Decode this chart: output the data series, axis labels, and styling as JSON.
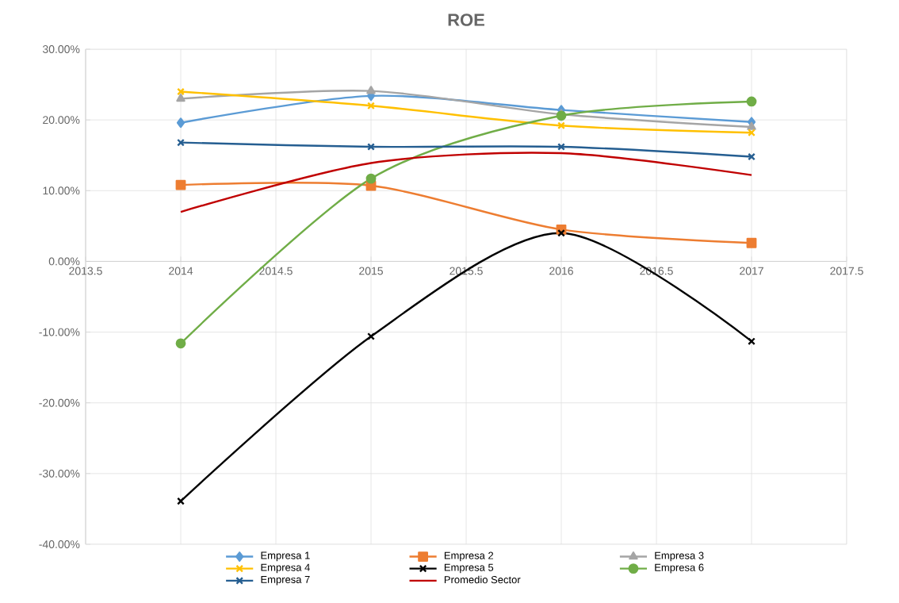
{
  "chart_data": {
    "type": "line",
    "title": "ROE",
    "x": [
      2014,
      2015,
      2016,
      2017
    ],
    "xlim": [
      2013.5,
      2017.5
    ],
    "xticks": [
      2013.5,
      2014,
      2014.5,
      2015,
      2015.5,
      2016,
      2016.5,
      2017,
      2017.5
    ],
    "ylim": [
      -40,
      30
    ],
    "yticks": [
      {
        "value": -40,
        "label": "-40.00%"
      },
      {
        "value": -30,
        "label": "-30.00%"
      },
      {
        "value": -20,
        "label": "-20.00%"
      },
      {
        "value": -10,
        "label": "-10.00%"
      },
      {
        "value": 0,
        "label": "0.00%"
      },
      {
        "value": 10,
        "label": "10.00%"
      },
      {
        "value": 20,
        "label": "20.00%"
      },
      {
        "value": 30,
        "label": "30.00%"
      }
    ],
    "grid": true,
    "legend": "bottom",
    "series": [
      {
        "name": "Empresa 1",
        "color": "#5b9bd5",
        "marker": "diamond",
        "values": [
          19.6,
          23.4,
          21.4,
          19.7
        ]
      },
      {
        "name": "Empresa 2",
        "color": "#ed7d31",
        "marker": "square",
        "values": [
          10.8,
          10.7,
          4.5,
          2.6
        ]
      },
      {
        "name": "Empresa 3",
        "color": "#a5a5a5",
        "marker": "triangle",
        "values": [
          23.0,
          24.1,
          20.8,
          19.0
        ]
      },
      {
        "name": "Empresa 4",
        "color": "#ffc000",
        "marker": "cross",
        "values": [
          24.0,
          22.0,
          19.2,
          18.2
        ]
      },
      {
        "name": "Empresa 5",
        "color": "#000000",
        "marker": "cross",
        "values": [
          -33.9,
          -10.6,
          4.0,
          -11.3
        ]
      },
      {
        "name": "Empresa 6",
        "color": "#70ad47",
        "marker": "circle",
        "values": [
          -11.6,
          11.7,
          20.6,
          22.6
        ]
      },
      {
        "name": "Empresa 7",
        "color": "#255e91",
        "marker": "cross",
        "values": [
          16.8,
          16.2,
          16.2,
          14.8
        ]
      },
      {
        "name": "Promedio Sector",
        "color": "#c00000",
        "marker": "none",
        "values": [
          7.0,
          13.9,
          15.3,
          12.2
        ]
      }
    ]
  }
}
